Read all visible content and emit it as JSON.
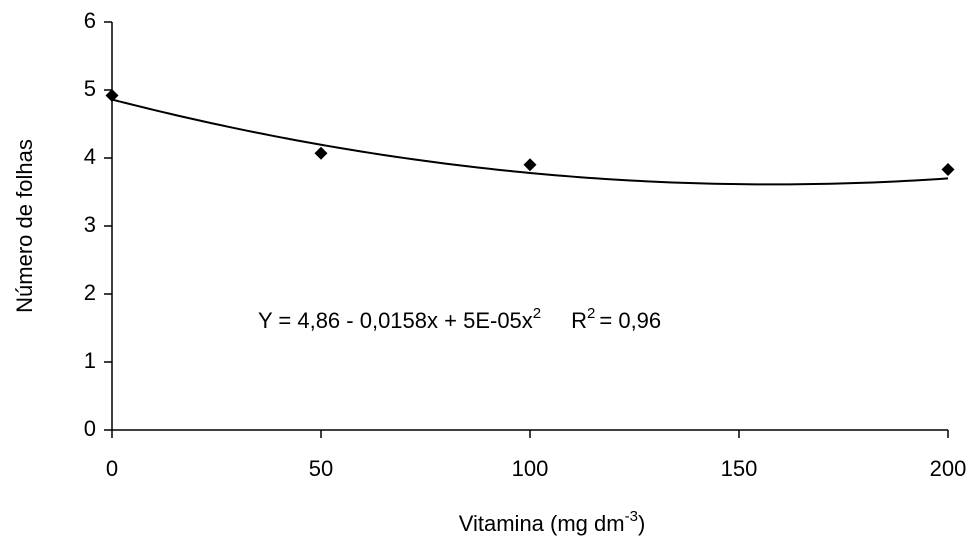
{
  "chart_data": {
    "type": "scatter",
    "x_label": {
      "text": "Vitamina (mg dm",
      "sup": "-3",
      "end": ")"
    },
    "y_label": "Número de folhas",
    "x": [
      0,
      50,
      100,
      200
    ],
    "values": [
      4.92,
      4.07,
      3.9,
      3.83
    ],
    "color": "#000000",
    "trendline": {
      "coefficients": [
        4.86,
        -0.0158,
        5e-05
      ]
    },
    "annotation": {
      "equation": "Y = 4,86 - 0,0158x + 5E-05x",
      "equation_sup": "2",
      "r2": "R",
      "r2_sup": "2",
      "r2_value": "= 0,96"
    },
    "xlim": [
      0,
      200
    ],
    "xticks": [
      0,
      50,
      100,
      150,
      200
    ],
    "ylim": [
      0,
      6
    ],
    "yticks": [
      0,
      1,
      2,
      3,
      4,
      5,
      6
    ],
    "grid": false
  }
}
